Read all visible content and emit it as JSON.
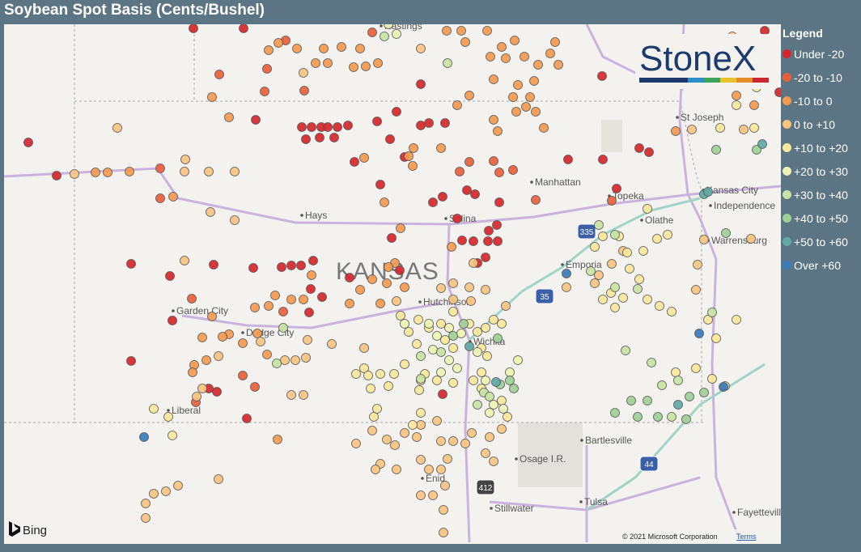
{
  "title": "Soybean Spot Basis (Cents/Bushel)",
  "legend": {
    "title": "Legend",
    "items": [
      {
        "label": "Under -20",
        "color": "#d7262b"
      },
      {
        "label": "-20 to -10",
        "color": "#e8603a"
      },
      {
        "label": "-10 to 0",
        "color": "#f39a4f"
      },
      {
        "label": "0 to +10",
        "color": "#f7c480"
      },
      {
        "label": "+10 to +20",
        "color": "#f9e79b"
      },
      {
        "label": "+20 to +30",
        "color": "#eef3b3"
      },
      {
        "label": "+30 to +40",
        "color": "#c8e3a3"
      },
      {
        "label": "+40 to +50",
        "color": "#9fcf96"
      },
      {
        "label": "+50 to +60",
        "color": "#5ea9a6"
      },
      {
        "label": "Over +60",
        "color": "#3a7bb8"
      }
    ]
  },
  "logo": "StoneX",
  "state_label": "KANSAS",
  "map_labels": [
    "Hastings",
    "Hays",
    "Salina",
    "Manhattan",
    "Topeka",
    "St Joseph",
    "Kansas City",
    "Independence",
    "Olathe",
    "Warrensburg",
    "Emporia",
    "Hutchinson",
    "Wichita",
    "Garden City",
    "Dodge City",
    "Liberal",
    "Bartlesville",
    "Osage I.R.",
    "Enid",
    "Stillwater",
    "Tulsa",
    "Fayetteville"
  ],
  "highway_shields": [
    "335",
    "35",
    "412",
    "44"
  ],
  "attribution": {
    "bing": "Bing",
    "copyright": "© 2021 Microsoft Corporation",
    "terms": "Terms"
  }
}
